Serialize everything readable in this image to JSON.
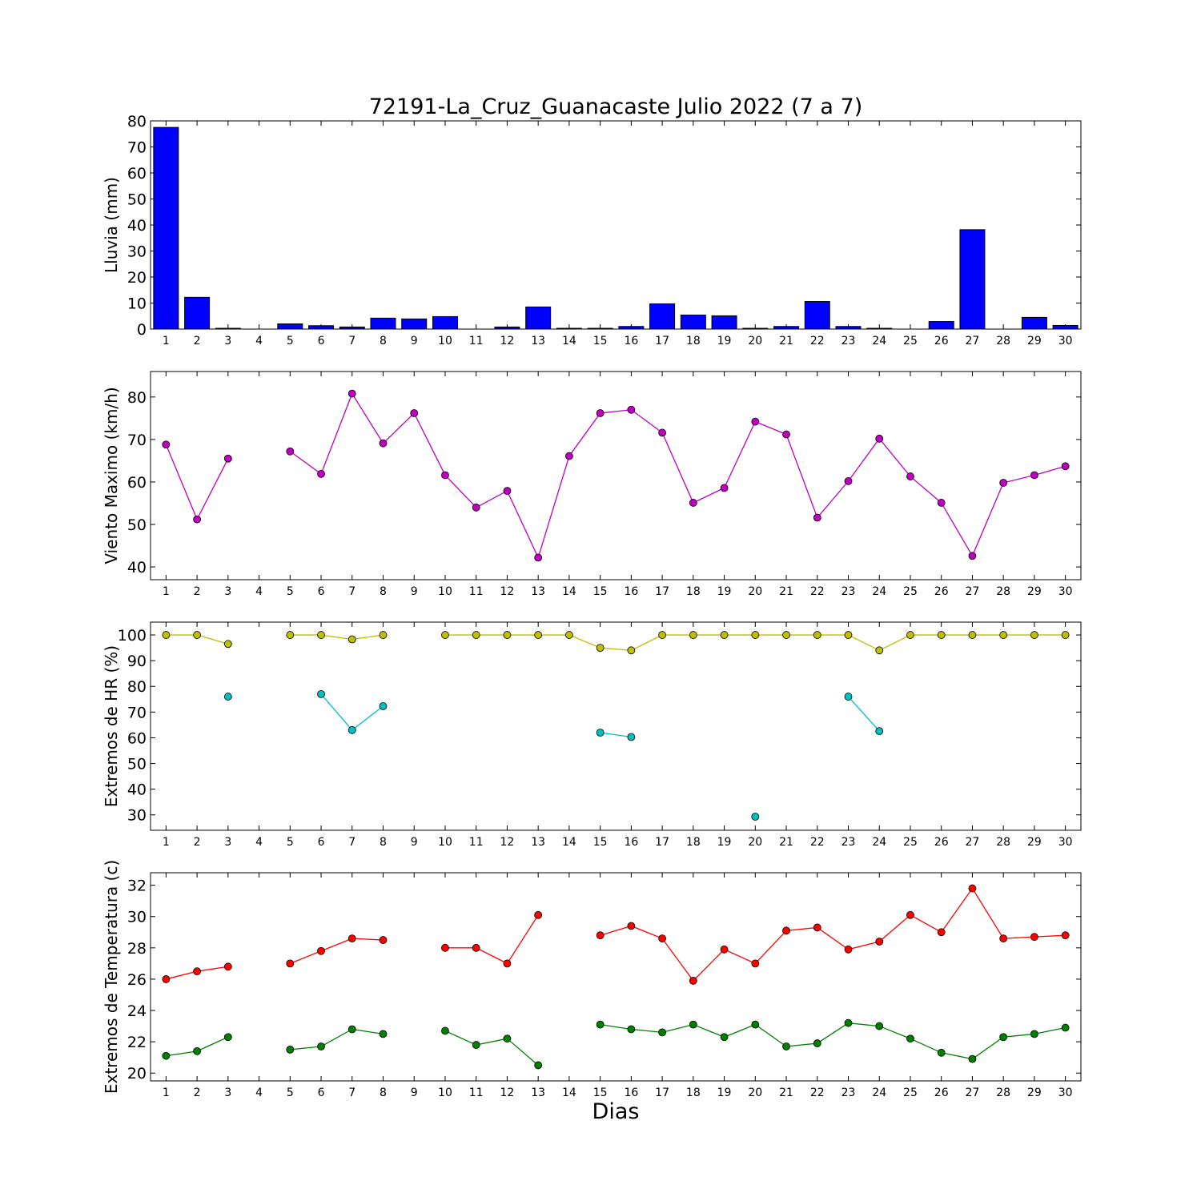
{
  "chart_data": [
    {
      "type": "bar",
      "title": "72191-La_Cruz_Guanacaste Julio 2022  (7 a 7)",
      "ylabel": "Lluvia (mm)",
      "xlabel": "",
      "ylim": [
        0,
        80
      ],
      "yticks": [
        0,
        10,
        20,
        30,
        40,
        50,
        60,
        70,
        80
      ],
      "categories": [
        "1",
        "2",
        "3",
        "4",
        "5",
        "6",
        "7",
        "8",
        "9",
        "10",
        "11",
        "12",
        "13",
        "14",
        "15",
        "16",
        "17",
        "18",
        "19",
        "20",
        "21",
        "22",
        "23",
        "24",
        "25",
        "26",
        "27",
        "28",
        "29",
        "30"
      ],
      "values": [
        77.5,
        12.2,
        0.3,
        0,
        2.0,
        1.3,
        0.8,
        4.2,
        3.9,
        4.8,
        0,
        0.8,
        8.5,
        0.3,
        0.3,
        1.0,
        9.7,
        5.4,
        5.1,
        0.3,
        1.0,
        10.6,
        1.0,
        0.3,
        0,
        2.9,
        38.2,
        0,
        4.5,
        1.4
      ],
      "color": "#0000ff"
    },
    {
      "type": "line",
      "ylabel": "Viento Maximo (km/h)",
      "ylim": [
        37,
        86
      ],
      "yticks": [
        40,
        50,
        60,
        70,
        80
      ],
      "x": [
        1,
        2,
        3,
        4,
        5,
        6,
        7,
        8,
        9,
        10,
        11,
        12,
        13,
        14,
        15,
        16,
        17,
        18,
        19,
        20,
        21,
        22,
        23,
        24,
        25,
        26,
        27,
        28,
        29,
        30
      ],
      "series": [
        {
          "values": [
            68.8,
            51.2,
            65.5,
            null,
            67.2,
            61.9,
            80.8,
            69.1,
            76.2,
            61.6,
            54.0,
            57.9,
            42.2,
            66.1,
            76.2,
            77.0,
            71.6,
            55.1,
            58.6,
            74.2,
            71.2,
            51.6,
            60.2,
            70.2,
            61.3,
            55.1,
            42.6,
            59.8,
            61.6,
            63.7
          ],
          "color": "#bf00bf"
        }
      ]
    },
    {
      "type": "line",
      "ylabel": "Extremos de HR (%)",
      "ylim": [
        24,
        105
      ],
      "yticks": [
        30,
        40,
        50,
        60,
        70,
        80,
        90,
        100
      ],
      "x": [
        1,
        2,
        3,
        4,
        5,
        6,
        7,
        8,
        9,
        10,
        11,
        12,
        13,
        14,
        15,
        16,
        17,
        18,
        19,
        20,
        21,
        22,
        23,
        24,
        25,
        26,
        27,
        28,
        29,
        30
      ],
      "series": [
        {
          "values": [
            100,
            100,
            96.5,
            null,
            100,
            100,
            98.3,
            100,
            null,
            100,
            100,
            100,
            100,
            100,
            95,
            94,
            100,
            100,
            100,
            100,
            100,
            100,
            100,
            94,
            100,
            100,
            100,
            100,
            100,
            100
          ],
          "color": "#bfbf00"
        },
        {
          "values": [
            null,
            null,
            76,
            null,
            null,
            77,
            63,
            72.3,
            null,
            null,
            null,
            null,
            null,
            null,
            62,
            60.3,
            null,
            null,
            null,
            29.3,
            null,
            null,
            76,
            62.6,
            null,
            null,
            null,
            null,
            null,
            null
          ],
          "color": "#00bfbf"
        }
      ]
    },
    {
      "type": "line",
      "ylabel": "Extremos de Temperatura (c)",
      "xlabel": "Dias",
      "ylim": [
        19.5,
        32.8
      ],
      "yticks": [
        20,
        22,
        24,
        26,
        28,
        30,
        32
      ],
      "x": [
        1,
        2,
        3,
        4,
        5,
        6,
        7,
        8,
        9,
        10,
        11,
        12,
        13,
        14,
        15,
        16,
        17,
        18,
        19,
        20,
        21,
        22,
        23,
        24,
        25,
        26,
        27,
        28,
        29,
        30
      ],
      "series": [
        {
          "values": [
            26.0,
            26.5,
            26.8,
            null,
            27.0,
            27.8,
            28.6,
            28.5,
            null,
            28.0,
            28.0,
            27.0,
            30.1,
            null,
            28.8,
            29.4,
            28.6,
            25.9,
            27.9,
            27.0,
            29.1,
            29.3,
            27.9,
            28.4,
            30.1,
            29.0,
            31.8,
            28.6,
            28.7,
            28.8
          ],
          "color": "#ff0000"
        },
        {
          "values": [
            21.1,
            21.4,
            22.3,
            null,
            21.5,
            21.7,
            22.8,
            22.5,
            null,
            22.7,
            21.8,
            22.2,
            20.5,
            null,
            23.1,
            22.8,
            22.6,
            23.1,
            22.3,
            23.1,
            21.7,
            21.9,
            23.2,
            23.0,
            22.2,
            21.3,
            20.9,
            22.3,
            22.5,
            22.9
          ],
          "color": "#008000"
        }
      ]
    }
  ]
}
